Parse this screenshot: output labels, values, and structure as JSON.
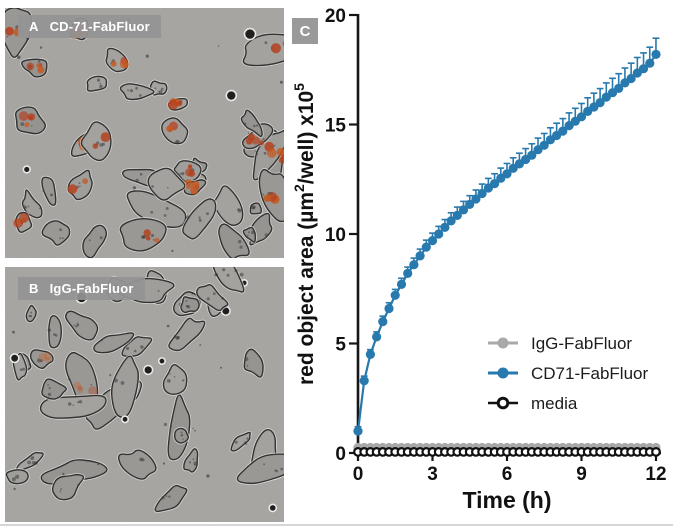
{
  "figure": {
    "panel_a": {
      "tag": "A",
      "label": "CD-71-FabFluor"
    },
    "panel_b": {
      "tag": "B",
      "label": "IgG-FabFluor"
    },
    "panel_c": {
      "tag": "C"
    }
  },
  "chart": {
    "ylabel_pre": "red object area (µm",
    "ylabel_sup1": "2",
    "ylabel_mid": "/well) x10",
    "ylabel_sup2": "5",
    "xlabel": "Time (h)",
    "y_ticks": [
      "0",
      "5",
      "10",
      "15",
      "20"
    ],
    "x_ticks": [
      "0",
      "3",
      "6",
      "9",
      "12"
    ]
  },
  "colors": {
    "cd71_blue": "#2779ae",
    "igg_gray": "#a9a9a9",
    "media_black": "#111111",
    "axis": "#161616",
    "micro_background": "#a8a6a3",
    "red_stain": "#b5401d",
    "red_stain_light": "#c5571f",
    "label_box_gray": "#949494"
  },
  "chart_data": {
    "type": "line",
    "title": "",
    "xlabel": "Time (h)",
    "ylabel": "red object area (µm2/well) x10^5",
    "xlim": [
      0,
      12
    ],
    "ylim": [
      0,
      20
    ],
    "grid": false,
    "legend_position": "inside lower-right",
    "x": [
      0,
      0.25,
      0.5,
      0.75,
      1,
      1.25,
      1.5,
      1.75,
      2,
      2.25,
      2.5,
      2.75,
      3,
      3.25,
      3.5,
      3.75,
      4,
      4.25,
      4.5,
      4.75,
      5,
      5.25,
      5.5,
      5.75,
      6,
      6.25,
      6.5,
      6.75,
      7,
      7.25,
      7.5,
      7.75,
      8,
      8.25,
      8.5,
      8.75,
      9,
      9.25,
      9.5,
      9.75,
      10,
      10.25,
      10.5,
      10.75,
      11,
      11.25,
      11.5,
      11.75,
      12
    ],
    "series": [
      {
        "name": "IgG-FabFluor",
        "color": "#a9a9a9",
        "marker": "filled-circle",
        "values": [
          0.25,
          0.25,
          0.25,
          0.25,
          0.25,
          0.25,
          0.25,
          0.25,
          0.25,
          0.25,
          0.25,
          0.25,
          0.25,
          0.25,
          0.25,
          0.25,
          0.25,
          0.25,
          0.25,
          0.25,
          0.25,
          0.25,
          0.25,
          0.25,
          0.25,
          0.25,
          0.25,
          0.25,
          0.25,
          0.25,
          0.25,
          0.25,
          0.25,
          0.25,
          0.25,
          0.25,
          0.25,
          0.25,
          0.25,
          0.25,
          0.25,
          0.25,
          0.25,
          0.25,
          0.25,
          0.25,
          0.25,
          0.25,
          0.25
        ]
      },
      {
        "name": "CD71-FabFluor",
        "color": "#2779ae",
        "marker": "filled-circle",
        "values": [
          1.0,
          3.3,
          4.5,
          5.3,
          6.0,
          6.6,
          7.2,
          7.7,
          8.2,
          8.6,
          9.0,
          9.4,
          9.7,
          10.0,
          10.3,
          10.6,
          10.85,
          11.1,
          11.35,
          11.6,
          11.85,
          12.1,
          12.3,
          12.55,
          12.75,
          13.0,
          13.2,
          13.4,
          13.6,
          13.85,
          14.05,
          14.3,
          14.5,
          14.7,
          14.95,
          15.15,
          15.35,
          15.6,
          15.8,
          16.0,
          16.25,
          16.45,
          16.65,
          16.9,
          17.1,
          17.35,
          17.55,
          17.8,
          18.2
        ],
        "errors_up": [
          0.2,
          0.21,
          0.22,
          0.23,
          0.25,
          0.26,
          0.27,
          0.28,
          0.29,
          0.3,
          0.31,
          0.32,
          0.34,
          0.35,
          0.36,
          0.37,
          0.38,
          0.39,
          0.4,
          0.41,
          0.43,
          0.44,
          0.45,
          0.46,
          0.47,
          0.48,
          0.49,
          0.5,
          0.52,
          0.53,
          0.54,
          0.55,
          0.56,
          0.57,
          0.58,
          0.59,
          0.61,
          0.62,
          0.63,
          0.64,
          0.65,
          0.66,
          0.67,
          0.68,
          0.7,
          0.71,
          0.72,
          0.73,
          0.74
        ]
      },
      {
        "name": "media",
        "color": "#111111",
        "marker": "open-circle",
        "values": [
          0.05,
          0.05,
          0.05,
          0.05,
          0.05,
          0.05,
          0.05,
          0.05,
          0.05,
          0.05,
          0.05,
          0.05,
          0.05,
          0.05,
          0.05,
          0.05,
          0.05,
          0.05,
          0.05,
          0.05,
          0.05,
          0.05,
          0.05,
          0.05,
          0.05,
          0.05,
          0.05,
          0.05,
          0.05,
          0.05,
          0.05,
          0.05,
          0.05,
          0.05,
          0.05,
          0.05,
          0.05,
          0.05,
          0.05,
          0.05,
          0.05,
          0.05,
          0.05,
          0.05,
          0.05,
          0.05,
          0.05,
          0.05,
          0.05
        ]
      }
    ]
  }
}
